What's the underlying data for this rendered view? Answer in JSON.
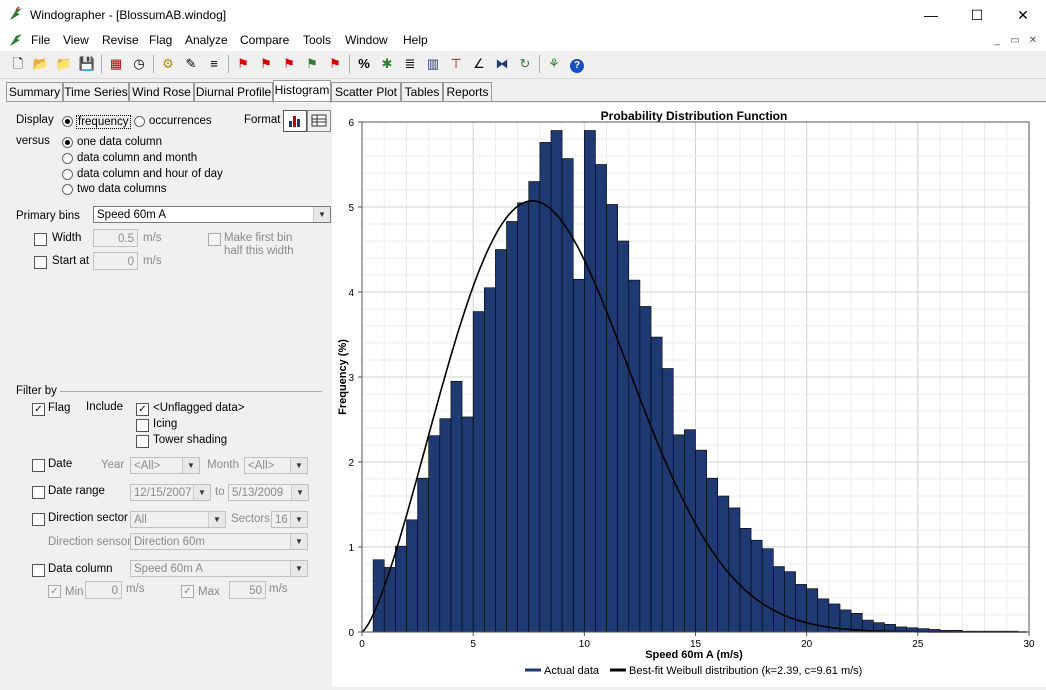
{
  "window": {
    "title": "Windographer - [BlossumAB.windog]",
    "minimize": "—",
    "maximize": "☐",
    "close": "✕"
  },
  "menu": [
    "File",
    "View",
    "Revise",
    "Flag",
    "Analyze",
    "Compare",
    "Tools",
    "Window",
    "Help"
  ],
  "mdi_controls": [
    "_",
    "▭",
    "✕"
  ],
  "tabs": [
    "Summary",
    "Time Series",
    "Wind Rose",
    "Diurnal Profile",
    "Histogram",
    "Scatter Plot",
    "Tables",
    "Reports"
  ],
  "active_tab": "Histogram",
  "panel": {
    "display_label": "Display",
    "versus_label": "versus",
    "display_options": [
      "frequency",
      "occurrences"
    ],
    "format_label": "Format",
    "versus_options": [
      "one data column",
      "data column and month",
      "data column and hour of day",
      "two data columns"
    ],
    "primary_bins_label": "Primary bins",
    "primary_bins_value": "Speed 60m A",
    "width_label": "Width",
    "width_value": "0.5",
    "width_unit": "m/s",
    "start_label": "Start at",
    "start_value": "0",
    "start_unit": "m/s",
    "half_bin_label_1": "Make first bin",
    "half_bin_label_2": "half this width",
    "filter_label": "Filter by",
    "flag_label": "Flag",
    "include_label": "Include",
    "flag_options": [
      "<Unflagged data>",
      "Icing",
      "Tower shading"
    ],
    "date_label": "Date",
    "year_label": "Year",
    "year_value": "<All>",
    "month_label": "Month",
    "month_value": "<All>",
    "date_range_label": "Date range",
    "date_from": "12/15/2007",
    "to_label": "to",
    "date_to": "5/13/2009",
    "direction_label": "Direction sector",
    "direction_value": "All",
    "sectors_label": "Sectors",
    "sectors_value": "16",
    "direction_sensor_label": "Direction sensor",
    "direction_sensor_value": "Direction 60m",
    "data_column_label": "Data column",
    "data_column_value": "Speed 60m A",
    "min_label": "Min",
    "min_value": "0",
    "min_unit": "m/s",
    "max_label": "Max",
    "max_value": "50",
    "max_unit": "m/s"
  },
  "chart_data": {
    "type": "bar",
    "title": "Probability Distribution Function",
    "xlabel": "Speed 60m A (m/s)",
    "ylabel": "Frequency (%)",
    "xlim": [
      0,
      30
    ],
    "ylim": [
      0,
      6
    ],
    "xticks": [
      0,
      5,
      10,
      15,
      20,
      25,
      30
    ],
    "yticks": [
      0,
      1,
      2,
      3,
      4,
      5,
      6
    ],
    "grid": true,
    "bin_width": 0.5,
    "bin_start": 0,
    "series": [
      {
        "name": "Actual data",
        "color": "#1f3a73",
        "values": [
          0.0,
          0.85,
          0.76,
          1.01,
          1.32,
          1.81,
          2.31,
          2.51,
          2.95,
          2.53,
          3.77,
          4.05,
          4.5,
          4.83,
          5.05,
          5.3,
          5.76,
          5.9,
          5.57,
          4.15,
          5.9,
          5.5,
          5.03,
          4.6,
          4.14,
          3.83,
          3.47,
          3.1,
          2.32,
          2.38,
          2.14,
          1.81,
          1.6,
          1.46,
          1.22,
          1.08,
          0.98,
          0.77,
          0.71,
          0.56,
          0.51,
          0.39,
          0.33,
          0.26,
          0.22,
          0.14,
          0.11,
          0.09,
          0.06,
          0.05,
          0.04,
          0.03,
          0.02,
          0.02,
          0.01,
          0.01,
          0.01,
          0.01,
          0.01,
          0.0
        ]
      },
      {
        "name": "Best-fit Weibull distribution (k=2.39, c=9.61 m/s)",
        "color": "#000000",
        "type": "line",
        "k": 2.39,
        "c": 9.61
      }
    ],
    "legend": "bottom"
  }
}
